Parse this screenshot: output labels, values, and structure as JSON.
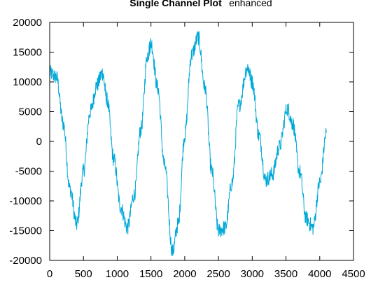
{
  "chart_data": {
    "type": "line",
    "title_bold": "Single Channel Plot",
    "title_plain": "enhanced",
    "xlabel": "",
    "ylabel": "",
    "xlim": [
      0,
      4500
    ],
    "ylim": [
      -20000,
      20000
    ],
    "x_ticks": [
      0,
      500,
      1000,
      1500,
      2000,
      2500,
      3000,
      3500,
      4000,
      4500
    ],
    "y_ticks": [
      -20000,
      -15000,
      -10000,
      -5000,
      0,
      5000,
      10000,
      15000,
      20000
    ],
    "x_tick_labels": [
      "0",
      "500",
      "1000",
      "1500",
      "2000",
      "2500",
      "3000",
      "3500",
      "4000",
      "4500"
    ],
    "y_tick_labels": [
      "-20000",
      "-15000",
      "-10000",
      "-5000",
      "0",
      "5000",
      "10000",
      "15000",
      "20000"
    ],
    "grid": false,
    "series": [
      {
        "color": "#00a8d8",
        "x": [
          0,
          100,
          200,
          300,
          400,
          500,
          600,
          700,
          780,
          850,
          950,
          1050,
          1150,
          1250,
          1350,
          1450,
          1500,
          1600,
          1700,
          1820,
          1900,
          2000,
          2100,
          2200,
          2300,
          2400,
          2500,
          2600,
          2700,
          2800,
          2930,
          3000,
          3100,
          3200,
          3300,
          3400,
          3520,
          3600,
          3700,
          3800,
          3900,
          4000,
          4100
        ],
        "y": [
          11500,
          10800,
          3000,
          -8000,
          -14000,
          -5000,
          5000,
          9500,
          11500,
          7000,
          -3000,
          -11000,
          -14500,
          -9000,
          2000,
          14500,
          16500,
          9000,
          -4000,
          -18500,
          -14000,
          1000,
          14500,
          17500,
          9000,
          -5000,
          -15000,
          -14500,
          -7000,
          6000,
          12500,
          10000,
          1000,
          -6500,
          -5500,
          -1000,
          5500,
          3000,
          -5000,
          -13000,
          -14500,
          -7000,
          1500
        ]
      }
    ]
  }
}
